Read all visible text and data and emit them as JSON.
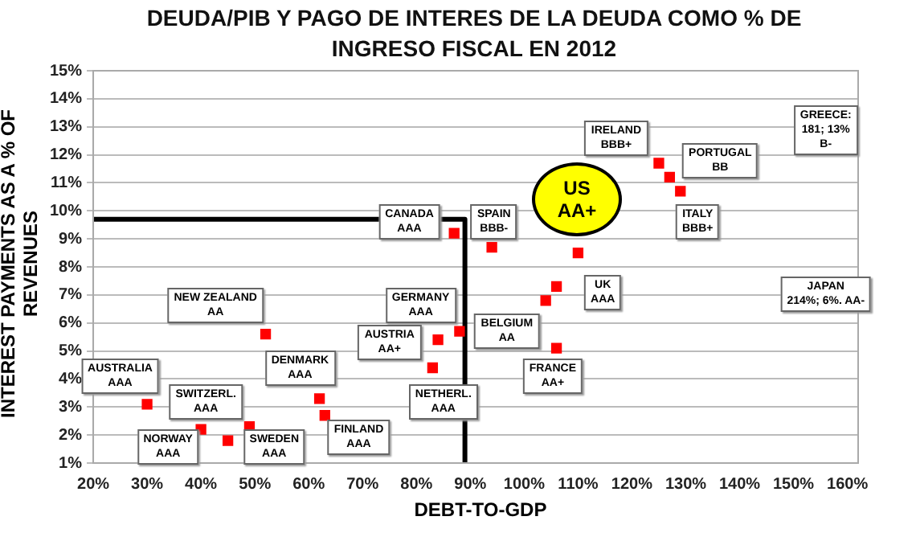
{
  "chart_data": {
    "type": "scatter",
    "title": "DEUDA/PIB Y PAGO DE INTERES DE LA DEUDA  COMO % DE INGRESO FISCAL EN 2012",
    "xlabel": "DEBT-TO-GDP",
    "ylabel": "INTEREST PAYMENTS AS A % OF REVENUES",
    "series": [
      {
        "type": "scatter",
        "color": "#ff0000",
        "marker": "square",
        "x": [
          30,
          40,
          45,
          49,
          52,
          62,
          63,
          83,
          84,
          88,
          87,
          94,
          110,
          106,
          104,
          106,
          125,
          127,
          129
        ],
        "values": [
          3.1,
          2.2,
          1.8,
          2.3,
          5.6,
          3.3,
          2.7,
          4.4,
          5.4,
          5.7,
          9.2,
          8.7,
          8.5,
          7.3,
          6.8,
          5.1,
          11.7,
          11.2,
          10.7
        ]
      },
      {
        "type": "line",
        "color": "#000000",
        "marker": "none",
        "x": [
          20,
          89,
          89
        ],
        "values": [
          9.7,
          9.7,
          1
        ]
      }
    ],
    "xlim": [
      20,
      162
    ],
    "xticks": [
      {
        "value": 20,
        "label": "20%"
      },
      {
        "value": 30,
        "label": "30%"
      },
      {
        "value": 40,
        "label": "40%"
      },
      {
        "value": 50,
        "label": "50%"
      },
      {
        "value": 60,
        "label": "60%"
      },
      {
        "value": 70,
        "label": "70%"
      },
      {
        "value": 80,
        "label": "80%"
      },
      {
        "value": 90,
        "label": "90%"
      },
      {
        "value": 100,
        "label": "100%"
      },
      {
        "value": 110,
        "label": "110%"
      },
      {
        "value": 120,
        "label": "120%"
      },
      {
        "value": 130,
        "label": "130%"
      },
      {
        "value": 140,
        "label": "140%"
      },
      {
        "value": 150,
        "label": "150%"
      },
      {
        "value": 160,
        "label": "160%"
      }
    ],
    "ylim": [
      1,
      15
    ],
    "yticks": [
      {
        "value": 1,
        "label": "1%"
      },
      {
        "value": 2,
        "label": "2%"
      },
      {
        "value": 3,
        "label": "3%"
      },
      {
        "value": 4,
        "label": "4%"
      },
      {
        "value": 5,
        "label": "5%"
      },
      {
        "value": 6,
        "label": "6%"
      },
      {
        "value": 7,
        "label": "7%"
      },
      {
        "value": 8,
        "label": "8%"
      },
      {
        "value": 9,
        "label": "9%"
      },
      {
        "value": 10,
        "label": "10%"
      },
      {
        "value": 11,
        "label": "11%"
      },
      {
        "value": 12,
        "label": "12%"
      },
      {
        "value": 13,
        "label": "13%"
      },
      {
        "value": 14,
        "label": "14%"
      },
      {
        "value": 15,
        "label": "15%"
      }
    ],
    "grid": "y",
    "legend": false,
    "annotations": [
      "AUSTRALIA\nAAA",
      "NEW ZEALAND\nAA",
      "SWITZERL.\nAAA",
      "NORWAY\nAAA",
      "SWEDEN\nAAA",
      "DENMARK\nAAA",
      "FINLAND\nAAA",
      "CANADA\nAAA",
      "GERMANY\nAAA",
      "AUSTRIA\nAA+",
      "NETHERL.\nAAA",
      "SPAIN\nBBB-",
      "BELGIUM\nAA",
      "UK\nAAA",
      "FRANCE\nAA+",
      "IRELAND\nBBB+",
      "PORTUGAL\nBB",
      "ITALY\nBBB+",
      "GREECE:\n181; 13%\nB-",
      "JAPAN\n214%; 6%. AA-",
      "US\nAA+"
    ]
  }
}
